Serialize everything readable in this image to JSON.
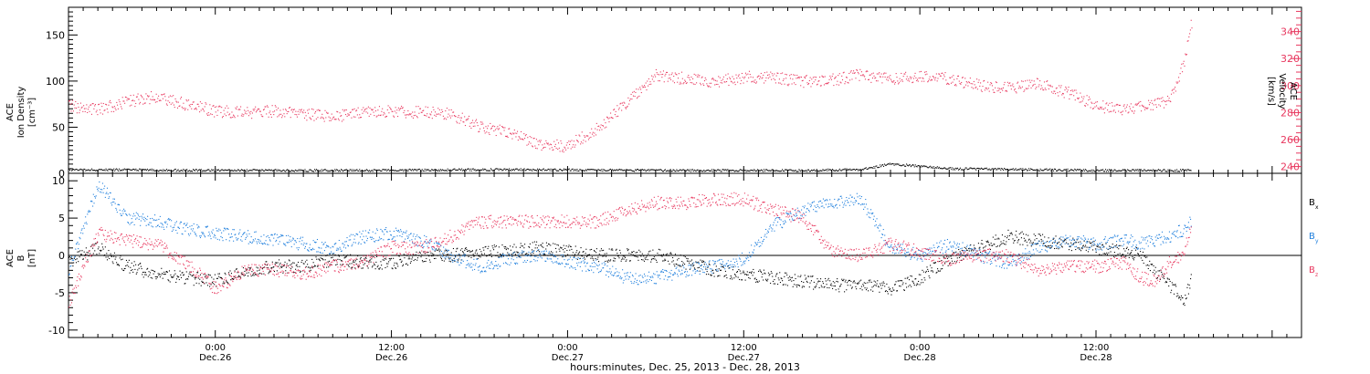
{
  "colors": {
    "pink": "#e8385f",
    "blue": "#1f7fdd",
    "black": "#000000"
  },
  "chart_data": [
    {
      "type": "scatter",
      "panel": "top",
      "ylabel_lines": [
        "ACE",
        "Ion Density",
        "[cm⁻³]"
      ],
      "ylim": [
        0,
        180
      ],
      "yticks": [
        0,
        50,
        100,
        150
      ],
      "y2label_lines": [
        "ACE",
        "Velocity",
        "[km/s]"
      ],
      "y2lim": [
        235,
        358
      ],
      "y2ticks": [
        240,
        260,
        280,
        300,
        320,
        340
      ],
      "xlim_hours": [
        -10,
        74
      ],
      "series": [
        {
          "axis": "left",
          "color": "#000000",
          "x": [
            -10,
            0,
            10,
            20,
            30,
            40,
            44,
            46,
            50,
            60,
            66.5
          ],
          "y": [
            4,
            3,
            3,
            4,
            3,
            3,
            4,
            10,
            5,
            3,
            3
          ]
        },
        {
          "axis": "right",
          "color": "#e8385f",
          "x": [
            -10,
            -8,
            -6,
            -4,
            -2,
            0,
            2,
            4,
            6,
            8,
            10,
            12,
            14,
            16,
            18,
            20,
            22,
            24,
            26,
            28,
            30,
            32,
            34,
            36,
            38,
            40,
            42,
            44,
            46,
            48,
            50,
            52,
            54,
            56,
            58,
            60,
            62,
            63,
            64,
            65,
            66,
            66.5
          ],
          "y": [
            285,
            282,
            288,
            292,
            286,
            281,
            280,
            281,
            279,
            277,
            280,
            281,
            280,
            279,
            269,
            265,
            256,
            255,
            268,
            287,
            308,
            305,
            303,
            306,
            306,
            303,
            304,
            308,
            304,
            307,
            305,
            300,
            298,
            301,
            295,
            285,
            282,
            285,
            286,
            289,
            317,
            347
          ]
        }
      ]
    },
    {
      "type": "scatter",
      "panel": "bottom",
      "ylabel_lines": [
        "ACE",
        "B",
        "[nT]"
      ],
      "ylim": [
        -11,
        11
      ],
      "yticks": [
        -10,
        -5,
        0,
        5,
        10
      ],
      "xlim_hours": [
        -10,
        74
      ],
      "zero_line": true,
      "legend": [
        {
          "label": "B",
          "sub": "x",
          "color": "#000000"
        },
        {
          "label": "B",
          "sub": "y",
          "color": "#1f7fdd"
        },
        {
          "label": "B",
          "sub": "z",
          "color": "#e8385f"
        }
      ],
      "series": [
        {
          "name": "Bx",
          "color": "#000000",
          "x": [
            -10,
            -8,
            -6,
            -4,
            -2,
            0,
            2,
            4,
            6,
            8,
            10,
            12,
            14,
            16,
            18,
            20,
            22,
            24,
            26,
            28,
            30,
            32,
            34,
            36,
            38,
            40,
            42,
            44,
            46,
            48,
            50,
            52,
            54,
            56,
            58,
            60,
            62,
            63,
            64,
            65,
            66,
            66.5
          ],
          "y": [
            -1,
            1,
            -1.5,
            -2.5,
            -3,
            -3.5,
            -2,
            -1.5,
            -1.5,
            -0.5,
            -1,
            -1,
            0,
            0,
            0.5,
            0.5,
            1,
            0.5,
            0,
            0,
            0,
            -1,
            -2,
            -2.5,
            -3,
            -3.5,
            -4,
            -4,
            -4.5,
            -3,
            -0.5,
            1,
            2.5,
            2,
            1.5,
            1,
            0.5,
            0,
            -2,
            -4,
            -6,
            -3
          ]
        },
        {
          "name": "By",
          "color": "#1f7fdd",
          "x": [
            -10,
            -8,
            -6,
            -4,
            -2,
            0,
            2,
            4,
            6,
            8,
            10,
            12,
            14,
            16,
            18,
            20,
            22,
            24,
            26,
            28,
            30,
            32,
            34,
            36,
            38,
            40,
            42,
            44,
            46,
            48,
            50,
            52,
            54,
            56,
            58,
            60,
            62,
            63,
            64,
            65,
            66,
            66.5
          ],
          "y": [
            -2,
            9.5,
            5,
            4.5,
            3.5,
            3,
            2.5,
            2,
            1.5,
            1,
            2.5,
            3,
            2,
            0,
            -1.5,
            -0.5,
            0,
            -1,
            -1.5,
            -3,
            -3,
            -2,
            -1.5,
            -0.5,
            4,
            6,
            7,
            7.5,
            1,
            0,
            1.5,
            0,
            -1,
            1,
            2,
            1.5,
            2,
            1.5,
            2,
            2.5,
            3.5,
            4.5
          ]
        },
        {
          "name": "Bz",
          "color": "#e8385f",
          "x": [
            -10,
            -8,
            -6,
            -4,
            -2,
            0,
            2,
            4,
            6,
            8,
            10,
            12,
            14,
            16,
            18,
            20,
            22,
            24,
            26,
            28,
            30,
            32,
            34,
            36,
            38,
            40,
            42,
            44,
            46,
            48,
            50,
            52,
            54,
            56,
            58,
            60,
            62,
            63,
            64,
            65,
            66,
            66.5
          ],
          "y": [
            -6.5,
            3,
            2,
            1.5,
            -1,
            -4.5,
            -2,
            -2,
            -2.5,
            -1.5,
            -1,
            1,
            1,
            2.5,
            4.5,
            4.5,
            4.5,
            4.5,
            4.5,
            6,
            7,
            7,
            7.5,
            7.5,
            6,
            5,
            0.5,
            0,
            1.5,
            0.5,
            -0.5,
            0,
            0,
            -2,
            -1.5,
            -1.5,
            -1,
            -3,
            -3.5,
            -1,
            0.5,
            4.5
          ]
        }
      ]
    }
  ],
  "x_axis": {
    "tick_lines": [
      {
        "hour": 0,
        "top": "0:00",
        "bottom": "Dec.26"
      },
      {
        "hour": 12,
        "top": "12:00",
        "bottom": "Dec.26"
      },
      {
        "hour": 24,
        "top": "0:00",
        "bottom": "Dec.27"
      },
      {
        "hour": 36,
        "top": "12:00",
        "bottom": "Dec.27"
      },
      {
        "hour": 48,
        "top": "0:00",
        "bottom": "Dec.28"
      },
      {
        "hour": 60,
        "top": "12:00",
        "bottom": "Dec.28"
      }
    ],
    "footer": "hours:minutes, Dec. 25, 2013 - Dec. 28, 2013"
  }
}
